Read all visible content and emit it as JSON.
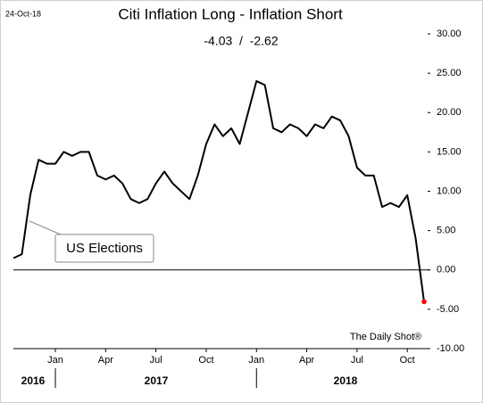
{
  "chart_data": {
    "type": "line",
    "date": "24-Oct-18",
    "title": "Citi Inflation Long - Inflation Short",
    "subtitle": "-4.03  /  -2.62",
    "annotation": "US Elections",
    "source": "The Daily Shot®",
    "categories": [
      null,
      null,
      null,
      null,
      null,
      "Jan",
      null,
      null,
      null,
      null,
      null,
      "Apr",
      null,
      null,
      null,
      null,
      null,
      "Jul",
      null,
      null,
      null,
      null,
      null,
      "Oct",
      null,
      null,
      null,
      null,
      null,
      "Jan",
      null,
      null,
      null,
      null,
      null,
      "Apr",
      null,
      null,
      null,
      null,
      null,
      "Jul",
      null,
      null,
      null,
      null,
      null,
      "Oct",
      null,
      null
    ],
    "years": [
      "2016",
      "2017",
      "2018"
    ],
    "series": [
      {
        "name": "Citi Inflation Long - Inflation Short",
        "color": "#000000",
        "values": [
          1.5,
          2,
          9.5,
          14,
          13.5,
          13.5,
          15,
          14.5,
          15,
          15,
          12,
          11.5,
          12,
          11,
          9,
          8.5,
          9,
          11,
          12.5,
          11,
          10,
          9,
          12,
          16,
          18.5,
          17,
          18,
          16,
          20,
          24,
          23.5,
          18,
          17.5,
          18.5,
          18,
          17,
          18.5,
          18,
          19.5,
          19,
          17,
          13,
          12,
          12,
          8,
          8.5,
          8,
          9.5,
          4,
          -4.03
        ]
      }
    ],
    "marker_color": "#ff0000",
    "ylim": [
      -10,
      30
    ],
    "yticks": [
      {
        "value": 30,
        "label": "30.00"
      },
      {
        "value": 25,
        "label": "25.00"
      },
      {
        "value": 20,
        "label": "20.00"
      },
      {
        "value": 15,
        "label": "15.00"
      },
      {
        "value": 10,
        "label": "10.00"
      },
      {
        "value": 5,
        "label": "5.00"
      },
      {
        "value": 0,
        "label": "0.00"
      },
      {
        "value": -5,
        "label": "-5.00"
      },
      {
        "value": -10,
        "label": "-10.00"
      }
    ],
    "zero_line": true
  }
}
